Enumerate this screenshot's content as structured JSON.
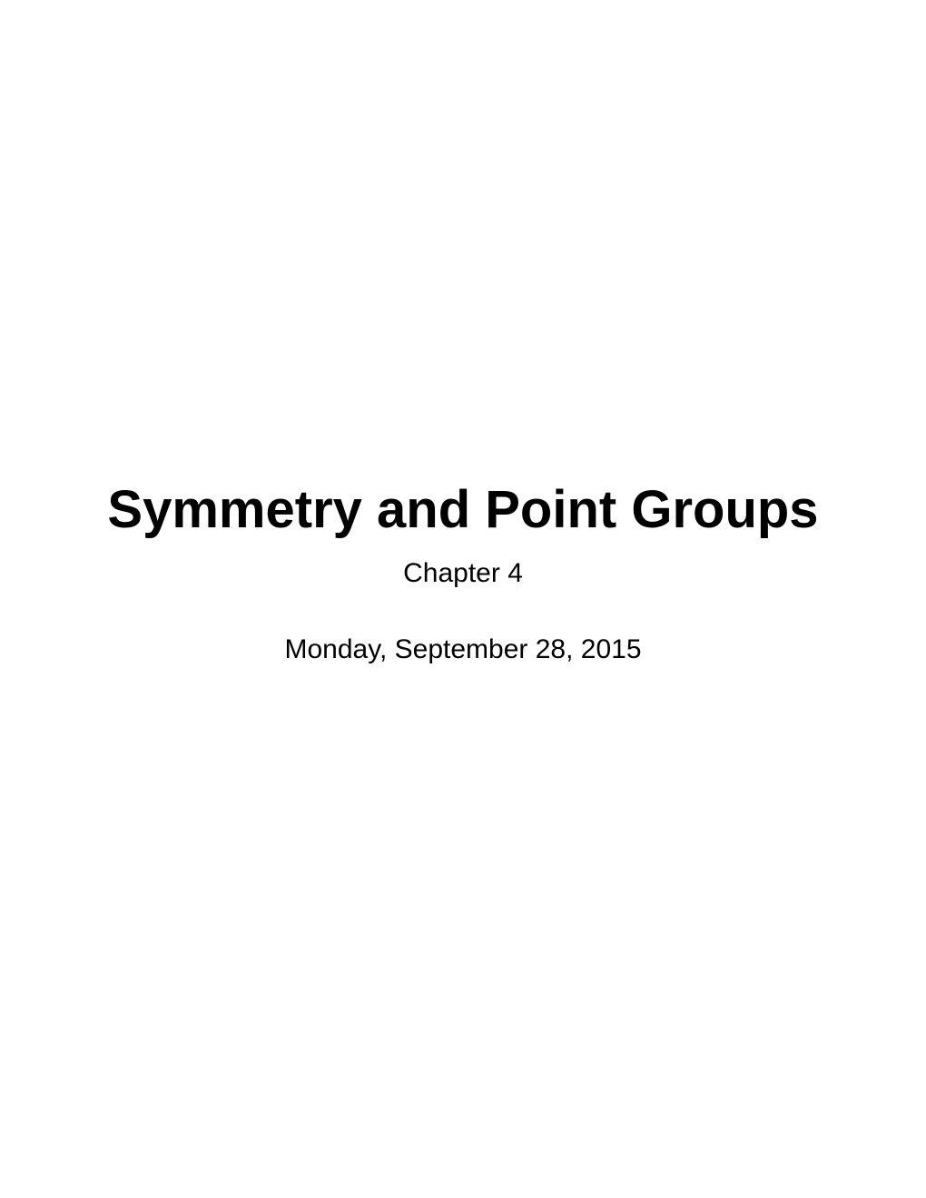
{
  "slide": {
    "title": "Symmetry and Point Groups",
    "chapter": "Chapter 4",
    "date": "Monday, September 28, 2015"
  },
  "colors": {
    "background": "#ffffff",
    "text": "#000000"
  },
  "typography": {
    "title_fontsize": 58,
    "title_weight": "bold",
    "chapter_fontsize": 30,
    "date_fontsize": 30,
    "font_family": "Arial, Helvetica, sans-serif"
  }
}
